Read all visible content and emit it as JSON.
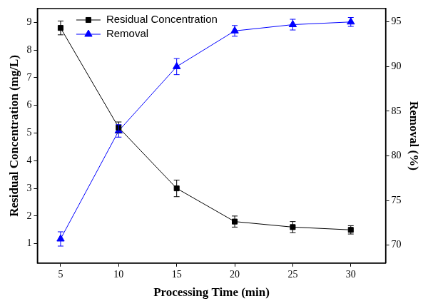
{
  "chart_data": {
    "type": "line",
    "x_label": "Processing Time (min)",
    "y_label": "Residual Concentration (mg/L)",
    "y2_label": "Removal (%)",
    "x": [
      5,
      10,
      15,
      20,
      25,
      30
    ],
    "xlim": [
      3,
      33
    ],
    "xticks": [
      5,
      10,
      15,
      20,
      25,
      30
    ],
    "ylim": [
      0.3,
      9.5
    ],
    "yticks": [
      1,
      2,
      3,
      4,
      5,
      6,
      7,
      8,
      9
    ],
    "y2lim": [
      68,
      96.5
    ],
    "y2ticks": [
      70,
      75,
      80,
      85,
      90,
      95
    ],
    "grid": false,
    "legend": "upper left",
    "series": [
      {
        "name": "Residual Concentration",
        "color": "#000000",
        "marker": "square",
        "line_style": "solid",
        "values": [
          8.8,
          5.2,
          3.0,
          1.8,
          1.6,
          1.5
        ],
        "errors": [
          0.25,
          0.2,
          0.3,
          0.2,
          0.2,
          0.15
        ]
      },
      {
        "name": "Removal",
        "color": "#0000ff",
        "marker": "triangle",
        "line_style": "solid",
        "axis": "y2",
        "values": [
          70.7,
          82.8,
          90.0,
          94.0,
          94.7,
          95.0
        ],
        "errors": [
          0.8,
          0.7,
          0.9,
          0.6,
          0.6,
          0.5
        ]
      }
    ]
  }
}
